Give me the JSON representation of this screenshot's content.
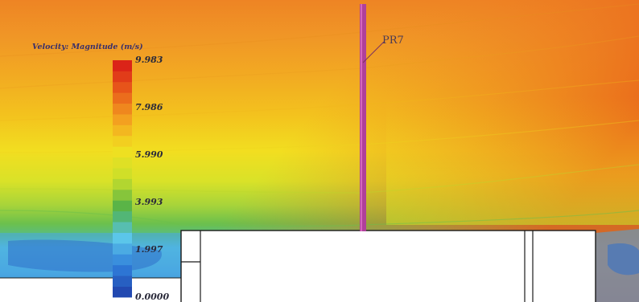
{
  "legend": {
    "title": "Velocity: Magnitude (m/s)",
    "ticks": [
      {
        "value": 9.983,
        "label": "9.983"
      },
      {
        "value": 7.986,
        "label": "7.986"
      },
      {
        "value": 5.99,
        "label": "5.990"
      },
      {
        "value": 3.993,
        "label": "3.993"
      },
      {
        "value": 1.997,
        "label": "1.997"
      },
      {
        "value": 0.0,
        "label": "0.0000"
      }
    ],
    "range": [
      0.0,
      9.983
    ],
    "bands": 22,
    "colormap": [
      "#1f3ea8",
      "#2e7bd8",
      "#5bc6ea",
      "#4fb04a",
      "#c8df2a",
      "#f2e020",
      "#f3a020",
      "#e85a1a",
      "#d81818"
    ]
  },
  "probe": {
    "label": "PR7"
  },
  "colors": {
    "outline": "#1a1a1a",
    "probe_line": "#b0409a",
    "obstacle_fill": "#ffffff"
  }
}
